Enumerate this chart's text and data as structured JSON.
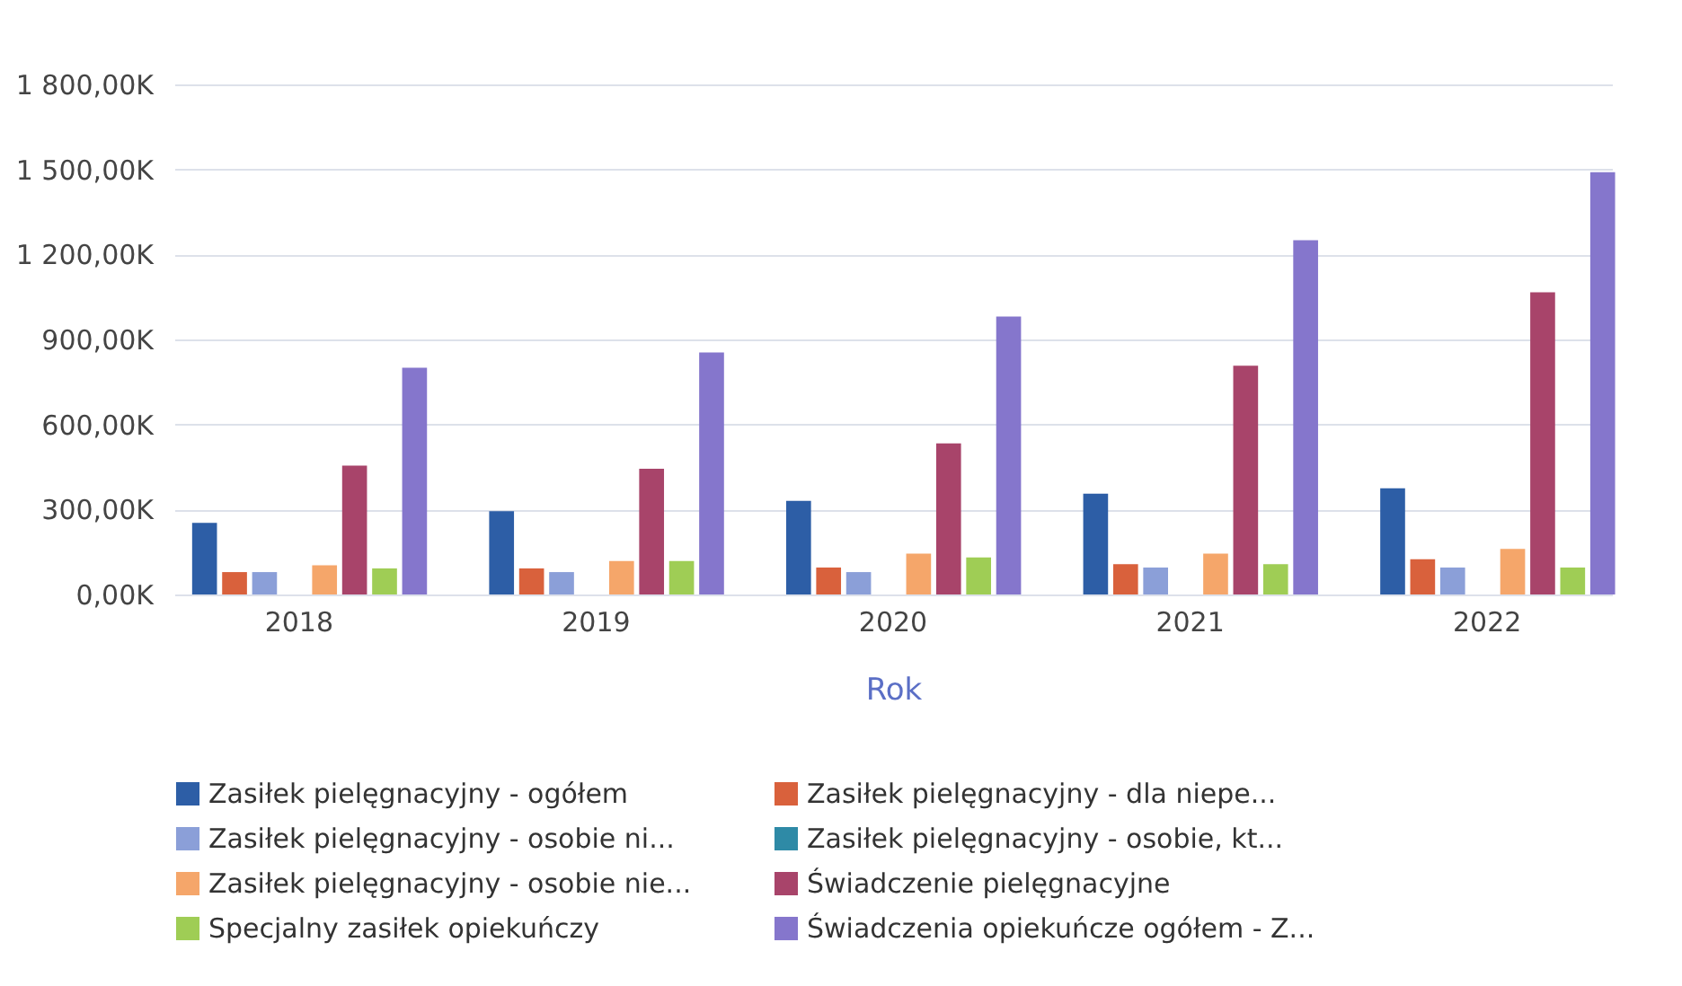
{
  "chart_data": {
    "type": "bar",
    "xlabel": "Rok",
    "categories": [
      "2018",
      "2019",
      "2020",
      "2021",
      "2022"
    ],
    "series": [
      {
        "name": "Zasiłek pielęgnacyjny - ogółem",
        "color": "#2d5ea6",
        "values": [
          253,
          294,
          330,
          356,
          375
        ]
      },
      {
        "name": "Zasiłek pielęgnacyjny - dla niepe...",
        "color": "#d9613c",
        "values": [
          79,
          92,
          95,
          107,
          124
        ]
      },
      {
        "name": "Zasiłek pielęgnacyjny - osobie ni...",
        "color": "#8b9fd8",
        "values": [
          79,
          79,
          79,
          95,
          95
        ]
      },
      {
        "name": "Zasiłek pielęgnacyjny - osobie, kt...",
        "color": "#2e8aa6",
        "values": [
          null,
          null,
          null,
          null,
          null
        ]
      },
      {
        "name": "Zasiłek pielęgnacyjny -  osobie nie...",
        "color": "#f5a66a",
        "values": [
          103,
          118,
          144,
          144,
          161
        ]
      },
      {
        "name": "Świadczenie pielęgnacyjne",
        "color": "#a8446a",
        "values": [
          455,
          444,
          533,
          807,
          1066
        ]
      },
      {
        "name": "Specjalny zasiłek opiekuńczy",
        "color": "#9fcd55",
        "values": [
          92,
          118,
          131,
          107,
          95
        ]
      },
      {
        "name": "Świadczenia opiekuńcze ogółem - Z...",
        "color": "#8576cc",
        "values": [
          800,
          854,
          981,
          1250,
          1490
        ]
      }
    ],
    "ylim": [
      0,
      1800
    ],
    "yticks": [
      {
        "value": 0,
        "label": "0,00K"
      },
      {
        "value": 300,
        "label": "300,00K"
      },
      {
        "value": 600,
        "label": "600,00K"
      },
      {
        "value": 900,
        "label": "900,00K"
      },
      {
        "value": 1200,
        "label": "1 200,00K"
      },
      {
        "value": 1500,
        "label": "1 500,00K"
      },
      {
        "value": 1800,
        "label": "1 800,00K"
      }
    ],
    "grid": "y",
    "legend": "bottom left"
  }
}
